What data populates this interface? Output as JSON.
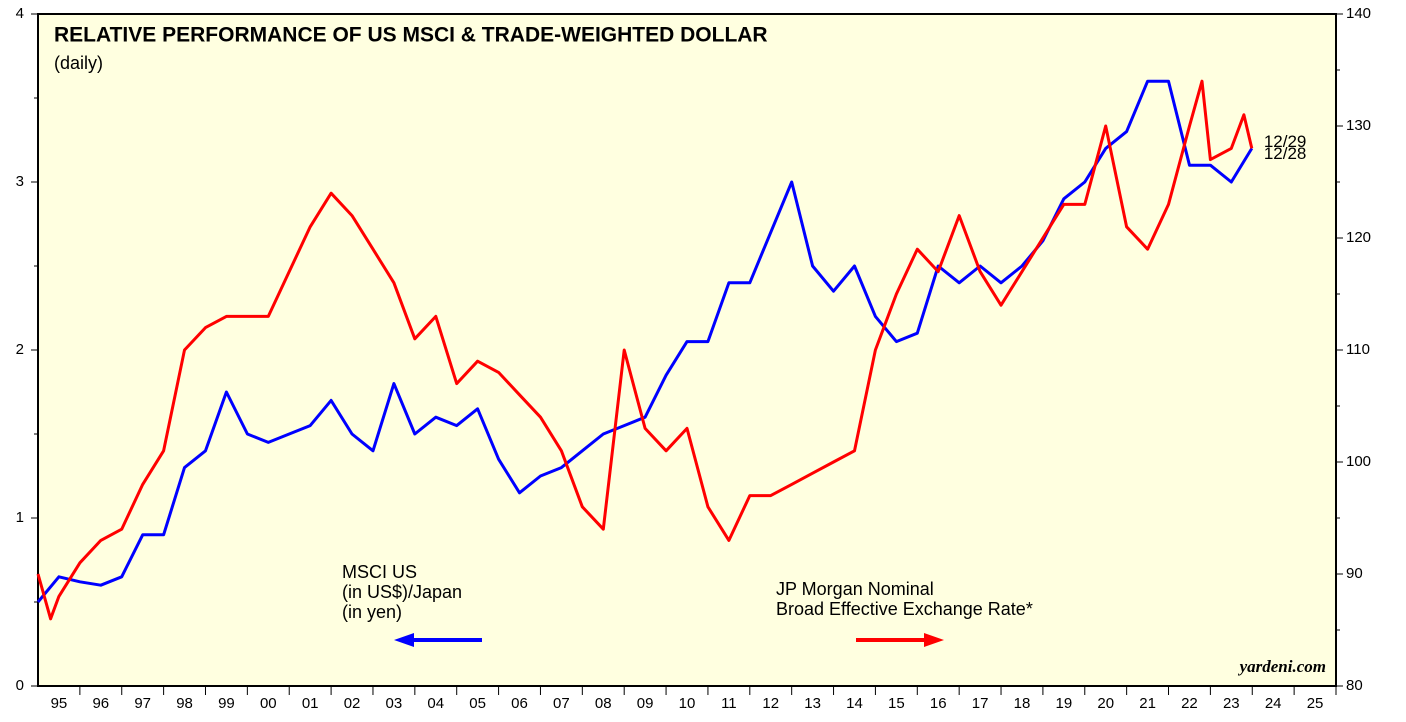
{
  "chart_data": {
    "type": "line",
    "title": "RELATIVE PERFORMANCE OF US MSCI & TRADE-WEIGHTED DOLLAR",
    "subtitle": "(daily)",
    "source": "yardeni.com",
    "xlim": [
      1995,
      2026
    ],
    "xticks": [
      {
        "value": 1995.5,
        "label": "95"
      },
      {
        "value": 1996.5,
        "label": "96"
      },
      {
        "value": 1997.5,
        "label": "97"
      },
      {
        "value": 1998.5,
        "label": "98"
      },
      {
        "value": 1999.5,
        "label": "99"
      },
      {
        "value": 2000.5,
        "label": "00"
      },
      {
        "value": 2001.5,
        "label": "01"
      },
      {
        "value": 2002.5,
        "label": "02"
      },
      {
        "value": 2003.5,
        "label": "03"
      },
      {
        "value": 2004.5,
        "label": "04"
      },
      {
        "value": 2005.5,
        "label": "05"
      },
      {
        "value": 2006.5,
        "label": "06"
      },
      {
        "value": 2007.5,
        "label": "07"
      },
      {
        "value": 2008.5,
        "label": "08"
      },
      {
        "value": 2009.5,
        "label": "09"
      },
      {
        "value": 2010.5,
        "label": "10"
      },
      {
        "value": 2011.5,
        "label": "11"
      },
      {
        "value": 2012.5,
        "label": "12"
      },
      {
        "value": 2013.5,
        "label": "13"
      },
      {
        "value": 2014.5,
        "label": "14"
      },
      {
        "value": 2015.5,
        "label": "15"
      },
      {
        "value": 2016.5,
        "label": "16"
      },
      {
        "value": 2017.5,
        "label": "17"
      },
      {
        "value": 2018.5,
        "label": "18"
      },
      {
        "value": 2019.5,
        "label": "19"
      },
      {
        "value": 2020.5,
        "label": "20"
      },
      {
        "value": 2021.5,
        "label": "21"
      },
      {
        "value": 2022.5,
        "label": "22"
      },
      {
        "value": 2023.5,
        "label": "23"
      },
      {
        "value": 2024.5,
        "label": "24"
      },
      {
        "value": 2025.5,
        "label": "25"
      }
    ],
    "ylim": [
      0,
      4
    ],
    "yticks": [
      0,
      1,
      2,
      3,
      4
    ],
    "y2lim": [
      80,
      140
    ],
    "y2ticks": [
      80,
      90,
      100,
      110,
      120,
      130,
      140
    ],
    "series": [
      {
        "name": [
          "MSCI US",
          "(in US$)/Japan",
          "(in yen)"
        ],
        "color": "#0000ff",
        "end_label": "12/28",
        "x": [
          1995.0,
          1995.5,
          1996.0,
          1996.5,
          1997.0,
          1997.5,
          1998.0,
          1998.5,
          1999.0,
          1999.5,
          2000.0,
          2000.5,
          2001.0,
          2001.5,
          2002.0,
          2002.5,
          2003.0,
          2003.5,
          2004.0,
          2004.5,
          2005.0,
          2005.5,
          2006.0,
          2006.5,
          2007.0,
          2007.5,
          2008.0,
          2008.5,
          2009.0,
          2009.5,
          2010.0,
          2010.5,
          2011.0,
          2011.5,
          2012.0,
          2012.5,
          2013.0,
          2013.5,
          2014.0,
          2014.5,
          2015.0,
          2015.5,
          2016.0,
          2016.5,
          2017.0,
          2017.5,
          2018.0,
          2018.5,
          2019.0,
          2019.5,
          2020.0,
          2020.5,
          2021.0,
          2021.5,
          2022.0,
          2022.5,
          2023.0,
          2023.5,
          2023.99
        ],
        "values": [
          0.5,
          0.65,
          0.62,
          0.6,
          0.65,
          0.9,
          0.9,
          1.3,
          1.4,
          1.75,
          1.5,
          1.45,
          1.5,
          1.55,
          1.7,
          1.5,
          1.4,
          1.8,
          1.5,
          1.6,
          1.55,
          1.65,
          1.35,
          1.15,
          1.25,
          1.3,
          1.4,
          1.5,
          1.55,
          1.6,
          1.85,
          2.05,
          2.05,
          2.4,
          2.4,
          2.7,
          3.0,
          2.5,
          2.35,
          2.5,
          2.2,
          2.05,
          2.1,
          2.5,
          2.4,
          2.5,
          2.4,
          2.5,
          2.65,
          2.9,
          3.0,
          3.2,
          3.3,
          3.6,
          3.6,
          3.1,
          3.1,
          3.0,
          3.2
        ]
      },
      {
        "name": [
          "JP Morgan Nominal",
          "Broad Effective Exchange Rate*"
        ],
        "color": "#ff0000",
        "axis": "y2",
        "end_label": "12/29",
        "x": [
          1995.0,
          1995.3,
          1995.5,
          1996.0,
          1996.5,
          1997.0,
          1997.5,
          1998.0,
          1998.5,
          1999.0,
          1999.5,
          2000.0,
          2000.5,
          2001.0,
          2001.5,
          2002.0,
          2002.5,
          2003.0,
          2003.5,
          2004.0,
          2004.5,
          2005.0,
          2005.5,
          2006.0,
          2006.5,
          2007.0,
          2007.5,
          2008.0,
          2008.5,
          2009.0,
          2009.5,
          2010.0,
          2010.5,
          2011.0,
          2011.5,
          2012.0,
          2012.5,
          2013.0,
          2013.5,
          2014.0,
          2014.5,
          2015.0,
          2015.5,
          2016.0,
          2016.5,
          2017.0,
          2017.5,
          2018.0,
          2018.5,
          2019.0,
          2019.5,
          2020.0,
          2020.5,
          2021.0,
          2021.5,
          2022.0,
          2022.5,
          2022.8,
          2023.0,
          2023.5,
          2023.8,
          2023.99
        ],
        "values": [
          90,
          86,
          88,
          91,
          93,
          94,
          98,
          101,
          110,
          112,
          113,
          113,
          113,
          117,
          121,
          124,
          122,
          119,
          116,
          111,
          113,
          107,
          109,
          108,
          106,
          104,
          101,
          96,
          94,
          110,
          103,
          101,
          103,
          96,
          93,
          97,
          97,
          98,
          99,
          100,
          101,
          110,
          115,
          119,
          117,
          122,
          117,
          114,
          117,
          120,
          123,
          123,
          130,
          121,
          119,
          123,
          130,
          134,
          127,
          128,
          131,
          128
        ]
      }
    ]
  }
}
